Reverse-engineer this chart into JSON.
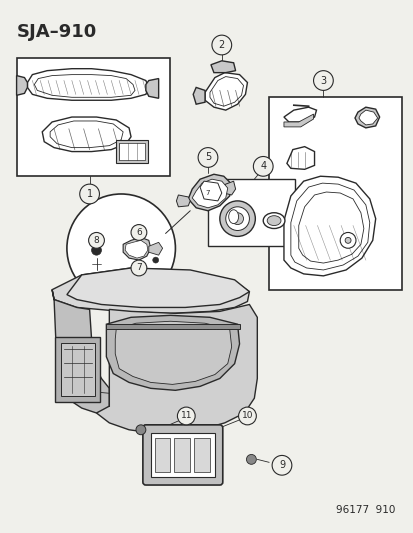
{
  "title": "SJA–910",
  "footer": "96177  910",
  "bg_color": "#f0f0eb",
  "line_color": "#2a2a2a",
  "white": "#ffffff",
  "gray_fill": "#c8c8c8",
  "light_gray": "#e0e0e0"
}
